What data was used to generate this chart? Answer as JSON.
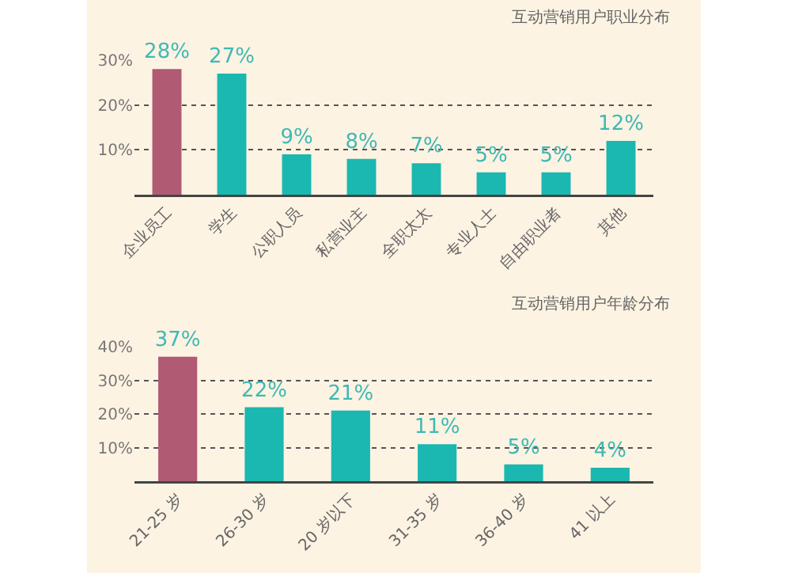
{
  "chart_data": [
    {
      "type": "bar",
      "title": "互动营销用户职业分布",
      "categories": [
        "企业员工",
        "学生",
        "公职人员",
        "私营业主",
        "全职太太",
        "专业人士",
        "自由职业者",
        "其他"
      ],
      "values": [
        28,
        27,
        9,
        8,
        7,
        5,
        5,
        12
      ],
      "colors": [
        "#b05a74",
        "#1ab8b0",
        "#1ab8b0",
        "#1ab8b0",
        "#1ab8b0",
        "#1ab8b0",
        "#1ab8b0",
        "#1ab8b0"
      ],
      "ylim": [
        0,
        30
      ],
      "yticks": [
        {
          "value": 10,
          "label": "10%"
        },
        {
          "value": 20,
          "label": "20%"
        },
        {
          "value": 30,
          "label": "30%"
        }
      ],
      "value_labels": [
        "28%",
        "27%",
        "9%",
        "8%",
        "7%",
        "5%",
        "5%",
        "12%"
      ],
      "grid": "y"
    },
    {
      "type": "bar",
      "title": "互动营销用户年龄分布",
      "categories": [
        "21-25 岁",
        "26-30 岁",
        "20 岁以下",
        "31-35 岁",
        "36-40 岁",
        "41 以上"
      ],
      "values": [
        37,
        22,
        21,
        11,
        5,
        4
      ],
      "colors": [
        "#b05a74",
        "#1ab8b0",
        "#1ab8b0",
        "#1ab8b0",
        "#1ab8b0",
        "#1ab8b0"
      ],
      "ylim": [
        0,
        40
      ],
      "yticks": [
        {
          "value": 10,
          "label": "10%"
        },
        {
          "value": 20,
          "label": "20%"
        },
        {
          "value": 30,
          "label": "30%"
        },
        {
          "value": 40,
          "label": "40%"
        }
      ],
      "value_labels": [
        "37%",
        "22%",
        "21%",
        "11%",
        "5%",
        "4%"
      ],
      "grid": "y"
    }
  ]
}
